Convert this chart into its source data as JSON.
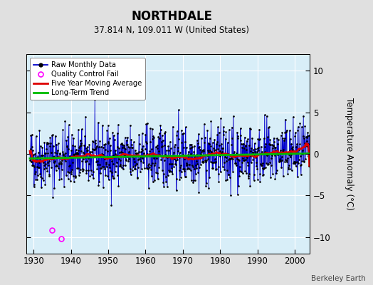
{
  "title": "NORTHDALE",
  "subtitle": "37.814 N, 109.011 W (United States)",
  "ylabel": "Temperature Anomaly (°C)",
  "credit": "Berkeley Earth",
  "year_start": 1929,
  "year_end": 2004,
  "ylim": [
    -12,
    12
  ],
  "yticks": [
    -10,
    -5,
    0,
    5,
    10
  ],
  "xticks": [
    1930,
    1940,
    1950,
    1960,
    1970,
    1980,
    1990,
    2000
  ],
  "xmin": 1928,
  "xmax": 2004,
  "seed": 42,
  "n_months": 900,
  "bg_color": "#e0e0e0",
  "plot_bg_color": "#d8eef8",
  "grid_color": "#ffffff",
  "bar_color": "#8888dd",
  "line_color": "#0000cc",
  "marker_color": "#000000",
  "ma_color": "#dd0000",
  "trend_color": "#00bb00",
  "qc_color": "#ff00ff",
  "noise_std": 1.8,
  "trend_slope": 0.008,
  "trend_intercept": -0.55,
  "ma_window": 60,
  "qc_year_1": 1935.0,
  "qc_val_1": -9.2,
  "qc_year_2": 1937.5,
  "qc_val_2": -10.2
}
